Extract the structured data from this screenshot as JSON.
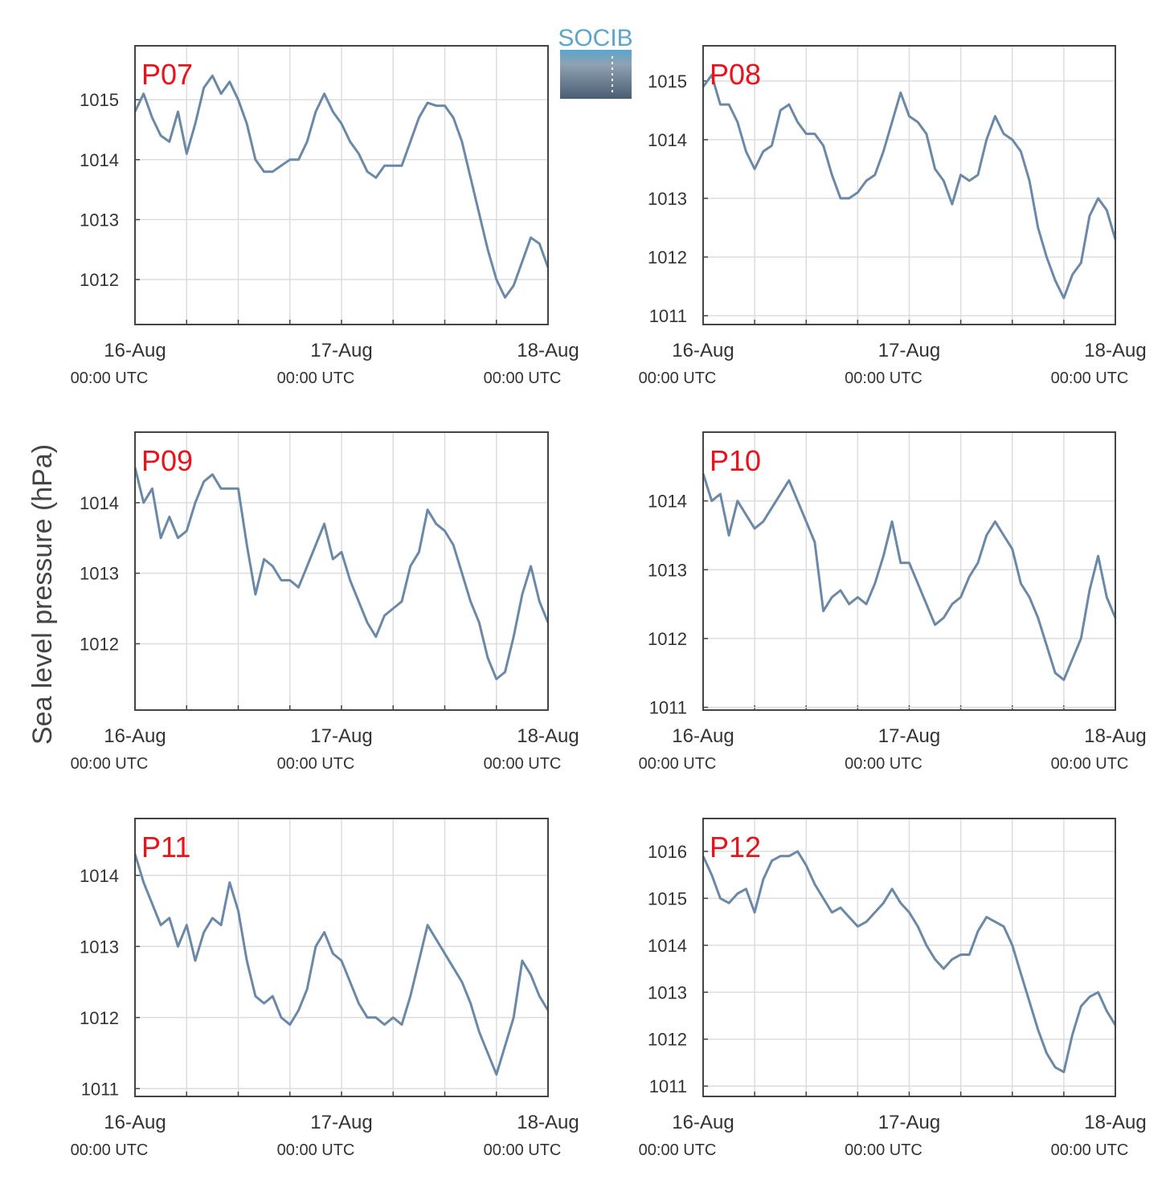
{
  "ylabel": "Sea level pressure (hPa)",
  "logo": "SOCIB",
  "chart_data": [
    {
      "type": "line",
      "title": "P07",
      "color": "#6a89a8",
      "grid": true,
      "xlim": [
        0,
        48
      ],
      "xticks": [
        {
          "value": 0,
          "label": "16-Aug",
          "sublabel": "00:00 UTC"
        },
        {
          "value": 24,
          "label": "17-Aug",
          "sublabel": "00:00 UTC"
        },
        {
          "value": 48,
          "label": "18-Aug",
          "sublabel": "00:00 UTC"
        }
      ],
      "xminor": [
        6,
        12,
        18,
        30,
        36,
        42
      ],
      "ylim": [
        1011.25,
        1015.9
      ],
      "yticks": [
        1012,
        1013,
        1014,
        1015
      ],
      "x": [
        0,
        1,
        2,
        3,
        4,
        5,
        6,
        7,
        8,
        9,
        10,
        11,
        12,
        13,
        14,
        15,
        16,
        17,
        18,
        19,
        20,
        21,
        22,
        23,
        24,
        25,
        26,
        27,
        28,
        29,
        30,
        31,
        32,
        33,
        34,
        35,
        36,
        37,
        38,
        39,
        40,
        41,
        42,
        43,
        44,
        45,
        46,
        47,
        48
      ],
      "values": [
        1014.8,
        1015.1,
        1014.7,
        1014.4,
        1014.3,
        1014.8,
        1014.1,
        1014.6,
        1015.2,
        1015.4,
        1015.1,
        1015.3,
        1015.0,
        1014.6,
        1014.0,
        1013.8,
        1013.8,
        1013.9,
        1014.0,
        1014.0,
        1014.3,
        1014.8,
        1015.1,
        1014.8,
        1014.6,
        1014.3,
        1014.1,
        1013.8,
        1013.7,
        1013.9,
        1013.9,
        1013.9,
        1014.3,
        1014.7,
        1014.95,
        1014.9,
        1014.9,
        1014.7,
        1014.3,
        1013.7,
        1013.1,
        1012.5,
        1012.0,
        1011.7,
        1011.9,
        1012.3,
        1012.7,
        1012.6,
        1012.2
      ]
    },
    {
      "type": "line",
      "title": "P08",
      "color": "#6a89a8",
      "grid": true,
      "xlim": [
        0,
        48
      ],
      "xticks": [
        {
          "value": 0,
          "label": "16-Aug",
          "sublabel": "00:00 UTC"
        },
        {
          "value": 24,
          "label": "17-Aug",
          "sublabel": "00:00 UTC"
        },
        {
          "value": 48,
          "label": "18-Aug",
          "sublabel": "00:00 UTC"
        }
      ],
      "xminor": [
        6,
        12,
        18,
        30,
        36,
        42
      ],
      "ylim": [
        1010.85,
        1015.6
      ],
      "yticks": [
        1011,
        1012,
        1013,
        1014,
        1015
      ],
      "x": [
        0,
        1,
        2,
        3,
        4,
        5,
        6,
        7,
        8,
        9,
        10,
        11,
        12,
        13,
        14,
        15,
        16,
        17,
        18,
        19,
        20,
        21,
        22,
        23,
        24,
        25,
        26,
        27,
        28,
        29,
        30,
        31,
        32,
        33,
        34,
        35,
        36,
        37,
        38,
        39,
        40,
        41,
        42,
        43,
        44,
        45,
        46,
        47,
        48
      ],
      "values": [
        1014.9,
        1015.1,
        1014.6,
        1014.6,
        1014.3,
        1013.8,
        1013.5,
        1013.8,
        1013.9,
        1014.5,
        1014.6,
        1014.3,
        1014.1,
        1014.1,
        1013.9,
        1013.4,
        1013.0,
        1013.0,
        1013.1,
        1013.3,
        1013.4,
        1013.8,
        1014.3,
        1014.8,
        1014.4,
        1014.3,
        1014.1,
        1013.5,
        1013.3,
        1012.9,
        1013.4,
        1013.3,
        1013.4,
        1014.0,
        1014.4,
        1014.1,
        1014.0,
        1013.8,
        1013.3,
        1012.5,
        1012.0,
        1011.6,
        1011.3,
        1011.7,
        1011.9,
        1012.7,
        1013.0,
        1012.8,
        1012.3
      ]
    },
    {
      "type": "line",
      "title": "P09",
      "color": "#6a89a8",
      "grid": true,
      "xlim": [
        0,
        48
      ],
      "xticks": [
        {
          "value": 0,
          "label": "16-Aug",
          "sublabel": "00:00 UTC"
        },
        {
          "value": 24,
          "label": "17-Aug",
          "sublabel": "00:00 UTC"
        },
        {
          "value": 48,
          "label": "18-Aug",
          "sublabel": "00:00 UTC"
        }
      ],
      "xminor": [
        6,
        12,
        18,
        30,
        36,
        42
      ],
      "ylim": [
        1011.06,
        1015.0
      ],
      "yticks": [
        1012,
        1013,
        1014
      ],
      "x": [
        0,
        1,
        2,
        3,
        4,
        5,
        6,
        7,
        8,
        9,
        10,
        11,
        12,
        13,
        14,
        15,
        16,
        17,
        18,
        19,
        20,
        21,
        22,
        23,
        24,
        25,
        26,
        27,
        28,
        29,
        30,
        31,
        32,
        33,
        34,
        35,
        36,
        37,
        38,
        39,
        40,
        41,
        42,
        43,
        44,
        45,
        46,
        47,
        48
      ],
      "values": [
        1014.5,
        1014.0,
        1014.2,
        1013.5,
        1013.8,
        1013.5,
        1013.6,
        1014.0,
        1014.3,
        1014.4,
        1014.2,
        1014.2,
        1014.2,
        1013.4,
        1012.7,
        1013.2,
        1013.1,
        1012.9,
        1012.9,
        1012.8,
        1013.1,
        1013.4,
        1013.7,
        1013.2,
        1013.3,
        1012.9,
        1012.6,
        1012.3,
        1012.1,
        1012.4,
        1012.5,
        1012.6,
        1013.1,
        1013.3,
        1013.9,
        1013.7,
        1013.6,
        1013.4,
        1013.0,
        1012.6,
        1012.3,
        1011.8,
        1011.5,
        1011.6,
        1012.1,
        1012.7,
        1013.1,
        1012.6,
        1012.3
      ]
    },
    {
      "type": "line",
      "title": "P10",
      "color": "#6a89a8",
      "grid": true,
      "xlim": [
        0,
        48
      ],
      "xticks": [
        {
          "value": 0,
          "label": "16-Aug",
          "sublabel": "00:00 UTC"
        },
        {
          "value": 24,
          "label": "17-Aug",
          "sublabel": "00:00 UTC"
        },
        {
          "value": 48,
          "label": "18-Aug",
          "sublabel": "00:00 UTC"
        }
      ],
      "xminor": [
        6,
        12,
        18,
        30,
        36,
        42
      ],
      "ylim": [
        1010.96,
        1015.0
      ],
      "yticks": [
        1011,
        1012,
        1013,
        1014
      ],
      "x": [
        0,
        1,
        2,
        3,
        4,
        5,
        6,
        7,
        8,
        9,
        10,
        11,
        12,
        13,
        14,
        15,
        16,
        17,
        18,
        19,
        20,
        21,
        22,
        23,
        24,
        25,
        26,
        27,
        28,
        29,
        30,
        31,
        32,
        33,
        34,
        35,
        36,
        37,
        38,
        39,
        40,
        41,
        42,
        43,
        44,
        45,
        46,
        47,
        48
      ],
      "values": [
        1014.4,
        1014.0,
        1014.1,
        1013.5,
        1014.0,
        1013.8,
        1013.6,
        1013.7,
        1013.9,
        1014.1,
        1014.3,
        1014.0,
        1013.7,
        1013.4,
        1012.4,
        1012.6,
        1012.7,
        1012.5,
        1012.6,
        1012.5,
        1012.8,
        1013.2,
        1013.7,
        1013.1,
        1013.1,
        1012.8,
        1012.5,
        1012.2,
        1012.3,
        1012.5,
        1012.6,
        1012.9,
        1013.1,
        1013.5,
        1013.7,
        1013.5,
        1013.3,
        1012.8,
        1012.6,
        1012.3,
        1011.9,
        1011.5,
        1011.4,
        1011.7,
        1012.0,
        1012.7,
        1013.2,
        1012.6,
        1012.3
      ]
    },
    {
      "type": "line",
      "title": "P11",
      "color": "#6a89a8",
      "grid": true,
      "xlim": [
        0,
        48
      ],
      "xticks": [
        {
          "value": 0,
          "label": "16-Aug",
          "sublabel": "00:00 UTC"
        },
        {
          "value": 24,
          "label": "17-Aug",
          "sublabel": "00:00 UTC"
        },
        {
          "value": 48,
          "label": "18-Aug",
          "sublabel": "00:00 UTC"
        }
      ],
      "xminor": [
        6,
        12,
        18,
        30,
        36,
        42
      ],
      "ylim": [
        1010.89,
        1014.8
      ],
      "yticks": [
        1011,
        1012,
        1013,
        1014
      ],
      "x": [
        0,
        1,
        2,
        3,
        4,
        5,
        6,
        7,
        8,
        9,
        10,
        11,
        12,
        13,
        14,
        15,
        16,
        17,
        18,
        19,
        20,
        21,
        22,
        23,
        24,
        25,
        26,
        27,
        28,
        29,
        30,
        31,
        32,
        33,
        34,
        35,
        36,
        37,
        38,
        39,
        40,
        41,
        42,
        43,
        44,
        45,
        46,
        47,
        48
      ],
      "values": [
        1014.3,
        1013.9,
        1013.6,
        1013.3,
        1013.4,
        1013.0,
        1013.3,
        1012.8,
        1013.2,
        1013.4,
        1013.3,
        1013.9,
        1013.5,
        1012.8,
        1012.3,
        1012.2,
        1012.3,
        1012.0,
        1011.9,
        1012.1,
        1012.4,
        1013.0,
        1013.2,
        1012.9,
        1012.8,
        1012.5,
        1012.2,
        1012.0,
        1012.0,
        1011.9,
        1012.0,
        1011.9,
        1012.3,
        1012.8,
        1013.3,
        1013.1,
        1012.9,
        1012.7,
        1012.5,
        1012.2,
        1011.8,
        1011.5,
        1011.2,
        1011.6,
        1012.0,
        1012.8,
        1012.6,
        1012.3,
        1012.1
      ]
    },
    {
      "type": "line",
      "title": "P12",
      "color": "#6a89a8",
      "grid": true,
      "xlim": [
        0,
        48
      ],
      "xticks": [
        {
          "value": 0,
          "label": "16-Aug",
          "sublabel": "00:00 UTC"
        },
        {
          "value": 24,
          "label": "17-Aug",
          "sublabel": "00:00 UTC"
        },
        {
          "value": 48,
          "label": "18-Aug",
          "sublabel": "00:00 UTC"
        }
      ],
      "xminor": [
        6,
        12,
        18,
        30,
        36,
        42
      ],
      "ylim": [
        1010.78,
        1016.7
      ],
      "yticks": [
        1011,
        1012,
        1013,
        1014,
        1015,
        1016
      ],
      "x": [
        0,
        1,
        2,
        3,
        4,
        5,
        6,
        7,
        8,
        9,
        10,
        11,
        12,
        13,
        14,
        15,
        16,
        17,
        18,
        19,
        20,
        21,
        22,
        23,
        24,
        25,
        26,
        27,
        28,
        29,
        30,
        31,
        32,
        33,
        34,
        35,
        36,
        37,
        38,
        39,
        40,
        41,
        42,
        43,
        44,
        45,
        46,
        47,
        48
      ],
      "values": [
        1015.9,
        1015.5,
        1015.0,
        1014.9,
        1015.1,
        1015.2,
        1014.7,
        1015.4,
        1015.8,
        1015.9,
        1015.9,
        1016.0,
        1015.7,
        1015.3,
        1015.0,
        1014.7,
        1014.8,
        1014.6,
        1014.4,
        1014.5,
        1014.7,
        1014.9,
        1015.2,
        1014.9,
        1014.7,
        1014.4,
        1014.0,
        1013.7,
        1013.5,
        1013.7,
        1013.8,
        1013.8,
        1014.3,
        1014.6,
        1014.5,
        1014.4,
        1014.0,
        1013.4,
        1012.8,
        1012.2,
        1011.7,
        1011.4,
        1011.3,
        1012.1,
        1012.7,
        1012.9,
        1013.0,
        1012.6,
        1012.3
      ]
    }
  ]
}
